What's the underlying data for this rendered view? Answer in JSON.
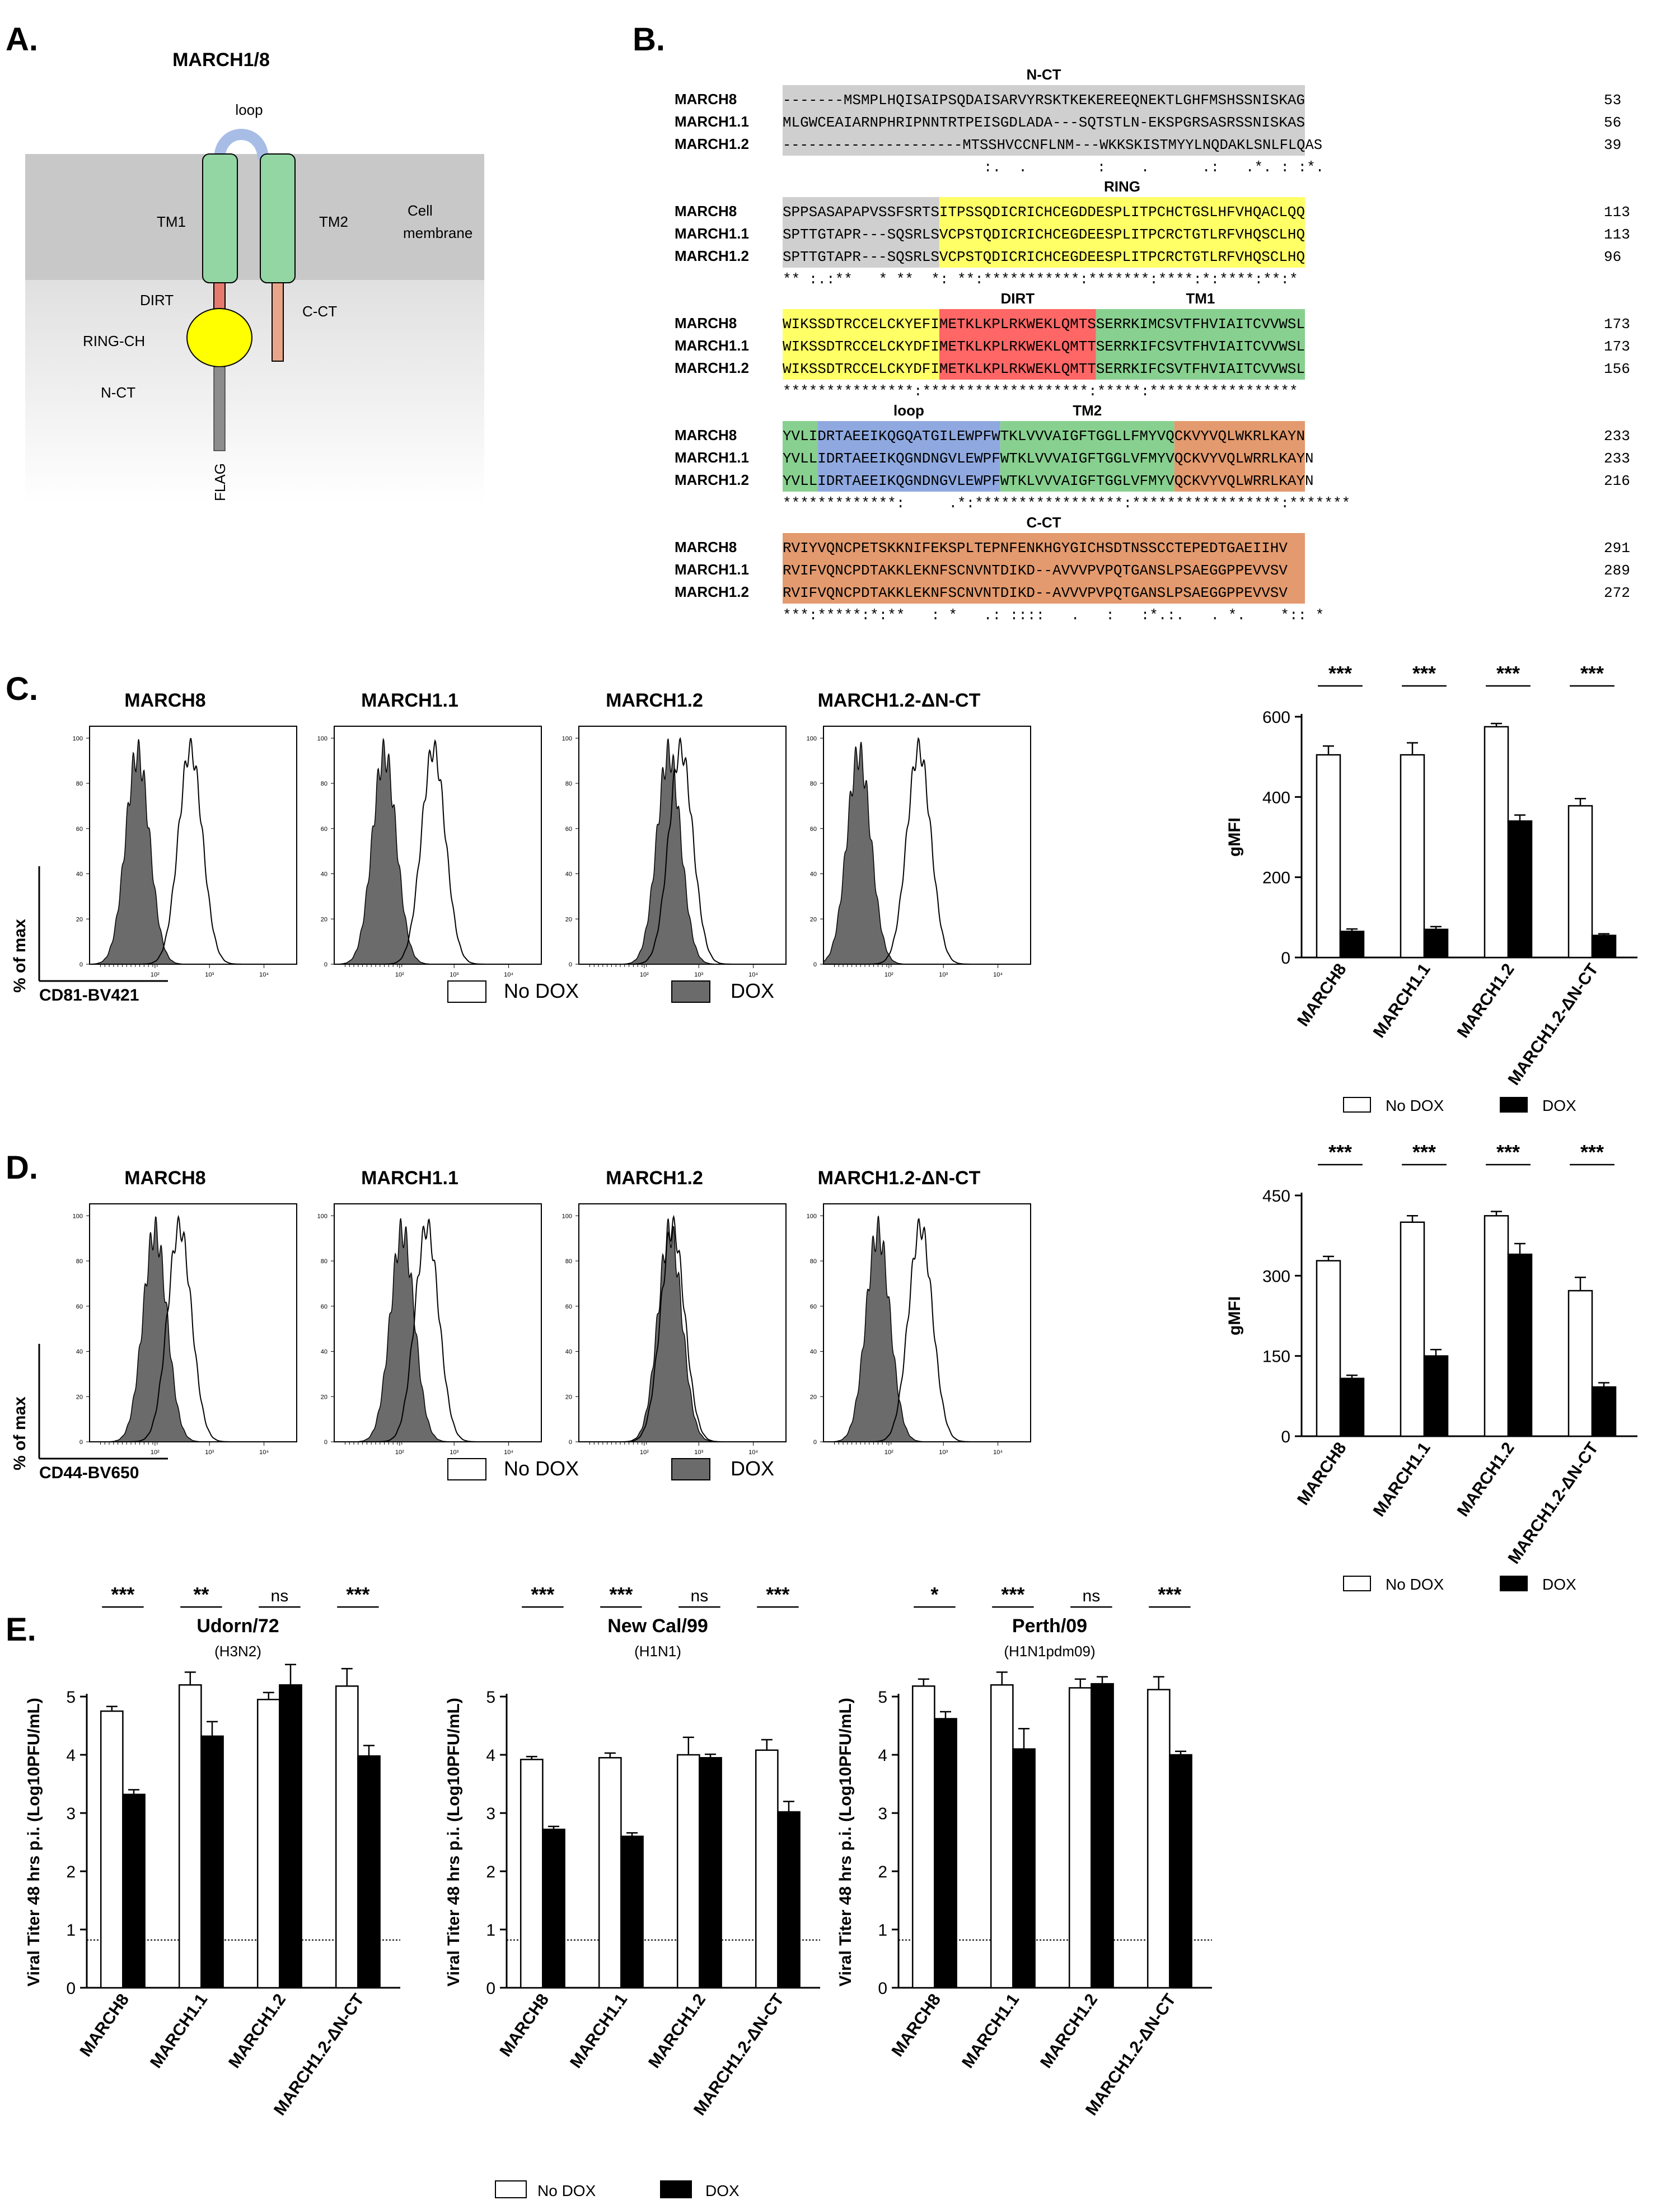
{
  "panelA": {
    "letter": "A.",
    "title": "MARCH1/8",
    "labels": {
      "loop": "loop",
      "tm1": "TM1",
      "tm2": "TM2",
      "membrane_line1": "Cell",
      "membrane_line2": "membrane",
      "dirt": "DIRT",
      "cct": "C-CT",
      "ringch": "RING-CH",
      "nct": "N-CT",
      "flag": "FLAG"
    },
    "colors": {
      "membrane": "#c8c8c8",
      "tm": "#93d6a4",
      "loop": "#a7bde6",
      "ring": "#ffff00",
      "dirt": "#e57a6e",
      "cct": "#e8a58a",
      "flag": "#8c8c8c"
    }
  },
  "panelB": {
    "letter": "B.",
    "colors": {
      "nct": "#cfcfcf",
      "ring": "#ffff66",
      "dirt": "#ff6666",
      "tm": "#88d08f",
      "loop": "#8fa9e0",
      "cct": "#e39a6e"
    },
    "blocks": [
      {
        "segments": [
          {
            "label": "N-CT",
            "color": "nct",
            "chars": 0,
            "len": 60
          }
        ],
        "rows": [
          {
            "name": "MARCH8",
            "seq": "-------MSMPLHQISAIPSQDAISARVYRSKTKEKEREEQNEKTLGHFMSHSSNISKAG",
            "num": "53"
          },
          {
            "name": "MARCH1.1",
            "seq": "MLGWCEAIARNPHRIPNNTRTPEISGDLADA---SQTSTLN-EKSPGRSASRSSNISKAS",
            "num": "56"
          },
          {
            "name": "MARCH1.2",
            "seq": "---------------------MTSSHVCCNFLNM---WKKSKISTMYYLNQDAKLSNLFLQAS",
            "num": "39"
          }
        ],
        "cons": "                       :.  .        :    .      .:   .*. : :*."
      },
      {
        "segments": [
          {
            "label": "",
            "color": "nct",
            "chars": 0,
            "len": 18
          },
          {
            "label": "RING",
            "color": "ring",
            "chars": 18,
            "len": 42
          }
        ],
        "rows": [
          {
            "name": "MARCH8",
            "seq": "SPPSASAPAPVSSFSRTSITPSSQDICRICHCEGDDESPLITPCHCTGSLHFVHQACLQQ",
            "num": "113"
          },
          {
            "name": "MARCH1.1",
            "seq": "SPTTGTAPR---SQSRLSVCPSTQDICRICHCEGDEESPLITPCRCTGTLRFVHQSCLHQ",
            "num": "113"
          },
          {
            "name": "MARCH1.2",
            "seq": "SPTTGTAPR---SQSRLSVCPSTQDICRICHCEGDEESPLITPCRCTGTLRFVHQSCLHQ",
            "num": "96"
          }
        ],
        "cons": "** :.:**   * **  *: **:***********:*******:****:*:****:**:*"
      },
      {
        "segments": [
          {
            "label": "",
            "color": "ring",
            "chars": 0,
            "len": 18
          },
          {
            "label": "DIRT",
            "color": "dirt",
            "chars": 18,
            "len": 18
          },
          {
            "label": "TM1",
            "color": "tm",
            "chars": 36,
            "len": 24
          }
        ],
        "rows": [
          {
            "name": "MARCH8",
            "seq": "WIKSSDTRCCELCKYEFIMETKLKPLRKWEKLQMTSSERRKIMCSVTFHVIAITCVVWSL",
            "num": "173"
          },
          {
            "name": "MARCH1.1",
            "seq": "WIKSSDTRCCELCKYDFIMETKLKPLRKWEKLQMTTSERRKIFCSVTFHVIAITCVVWSL",
            "num": "173"
          },
          {
            "name": "MARCH1.2",
            "seq": "WIKSSDTRCCELCKYDFIMETKLKPLRKWEKLQMTTSERRKIFCSVTFHVIAITCVVWSL",
            "num": "156"
          }
        ],
        "cons": "***************:*******************:*****:*****************"
      },
      {
        "segments": [
          {
            "label": "",
            "color": "tm",
            "chars": 0,
            "len": 4
          },
          {
            "label": "loop",
            "color": "loop",
            "chars": 4,
            "len": 21
          },
          {
            "label": "TM2",
            "color": "tm",
            "chars": 25,
            "len": 20
          },
          {
            "label": "",
            "color": "cct",
            "chars": 45,
            "len": 15
          }
        ],
        "rows": [
          {
            "name": "MARCH8",
            "seq": "YVLIDRTAEEIKQGQATGILEWPFWTKLVVVAIGFTGGLLFMYVQCKVYVQLWKRLKAYN",
            "num": "233"
          },
          {
            "name": "MARCH1.1",
            "seq": "YVLLIDRTAEEIKQGNDNGVLEWPFWTKLVVVAIGFTGGLVFMYVQCKVYVQLWRRLKAYN",
            "num": "233"
          },
          {
            "name": "MARCH1.2",
            "seq": "YVLLIDRTAEEIKQGNDNGVLEWPFWTKLVVVAIGFTGGLVFMYVQCKVYVQLWRRLKAYN",
            "num": "216"
          }
        ],
        "cons": "*************:     .*:*****************:*****************:*******"
      },
      {
        "segments": [
          {
            "label": "C-CT",
            "color": "cct",
            "chars": 0,
            "len": 60
          }
        ],
        "rows": [
          {
            "name": "MARCH8",
            "seq": "RVIYVQNCPETSKKNIFEKSPLTEPNFENKHGYGICHSDTNSSCCTEPEDTGAEIIHV",
            "num": "291"
          },
          {
            "name": "MARCH1.1",
            "seq": "RVIFVQNCPDTAKKLEKNFSCNVNTDIKD--AVVVPVPQTGANSLPSAEGGPPEVVSV",
            "num": "289"
          },
          {
            "name": "MARCH1.2",
            "seq": "RVIFVQNCPDTAKKLEKNFSCNVNTDIKD--AVVVPVPQTGANSLPSAEGGPPEVVSV",
            "num": "272"
          }
        ],
        "cons": "***:*****:*:**   : *   .: ::::   .   :   :*.:.   . *.    *:: *"
      }
    ]
  },
  "panelC": {
    "letter": "C.",
    "histograms": [
      {
        "title": "MARCH8",
        "nodox_peak": 2.65,
        "dox_peak": 1.68
      },
      {
        "title": "MARCH1.1",
        "nodox_peak": 2.62,
        "dox_peak": 1.72
      },
      {
        "title": "MARCH1.2",
        "nodox_peak": 2.67,
        "dox_peak": 2.45
      },
      {
        "title": "MARCH1.2-ΔN-CT",
        "nodox_peak": 2.55,
        "dox_peak": 1.45
      }
    ],
    "hist_y_ticks": [
      "100",
      "80",
      "60",
      "40",
      "20",
      "0"
    ],
    "hist_x_ticks": [
      "10²",
      "10³",
      "10⁴"
    ],
    "yaxis_label": "% of max",
    "xaxis_label": "CD81-BV421",
    "legend": {
      "nodox": "No DOX",
      "dox": "DOX"
    },
    "bar_legend": {
      "nodox": "No DOX",
      "dox": "DOX"
    }
  },
  "panelD": {
    "letter": "D.",
    "histograms": [
      {
        "title": "MARCH8",
        "nodox_peak": 2.45,
        "dox_peak": 2.0
      },
      {
        "title": "MARCH1.1",
        "nodox_peak": 2.5,
        "dox_peak": 2.05
      },
      {
        "title": "MARCH1.2",
        "nodox_peak": 2.52,
        "dox_peak": 2.47
      },
      {
        "title": "MARCH1.2-ΔN-CT",
        "nodox_peak": 2.58,
        "dox_peak": 1.8
      }
    ],
    "hist_y_ticks": [
      "100",
      "80",
      "60",
      "40",
      "20",
      "0"
    ],
    "hist_x_ticks": [
      "10²",
      "10³",
      "10⁴"
    ],
    "yaxis_label": "% of max",
    "xaxis_label": "CD44-BV650",
    "legend": {
      "nodox": "No DOX",
      "dox": "DOX"
    },
    "bar_legend": {
      "nodox": "No DOX",
      "dox": "DOX"
    }
  },
  "panelE": {
    "letter": "E.",
    "legend": {
      "nodox": "No DOX",
      "dox": "DOX"
    }
  },
  "chart_data": [
    {
      "type": "bar",
      "id": "C-gMFI",
      "categories": [
        "MARCH8",
        "MARCH1.1",
        "MARCH1.2",
        "MARCH1.2-ΔN-CT"
      ],
      "series": [
        {
          "name": "No DOX",
          "values": [
            505,
            505,
            575,
            378
          ],
          "err": [
            22,
            30,
            8,
            18
          ]
        },
        {
          "name": "DOX",
          "values": [
            65,
            70,
            340,
            55
          ],
          "err": [
            6,
            7,
            15,
            4
          ]
        }
      ],
      "ylabel": "gMFI",
      "ylim": [
        0,
        600
      ],
      "yticks": [
        "0",
        "200",
        "400",
        "600"
      ],
      "sig": [
        "***",
        "***",
        "***",
        "***"
      ]
    },
    {
      "type": "bar",
      "id": "D-gMFI",
      "categories": [
        "MARCH8",
        "MARCH1.1",
        "MARCH1.2",
        "MARCH1.2-ΔN-CT"
      ],
      "series": [
        {
          "name": "No DOX",
          "values": [
            328,
            400,
            412,
            272
          ],
          "err": [
            8,
            12,
            8,
            25
          ]
        },
        {
          "name": "DOX",
          "values": [
            108,
            150,
            340,
            92
          ],
          "err": [
            6,
            12,
            20,
            8
          ]
        }
      ],
      "ylabel": "gMFI",
      "ylim": [
        0,
        450
      ],
      "yticks": [
        "0",
        "150",
        "300",
        "450"
      ],
      "sig": [
        "***",
        "***",
        "***",
        "***"
      ]
    },
    {
      "type": "bar",
      "id": "E-Udorn",
      "title": "Udorn/72",
      "subtitle": "(H3N2)",
      "categories": [
        "MARCH8",
        "MARCH1.1",
        "MARCH1.2",
        "MARCH1.2-ΔN-CT"
      ],
      "series": [
        {
          "name": "No DOX",
          "values": [
            4.75,
            5.2,
            4.95,
            5.18
          ],
          "err": [
            0.08,
            0.22,
            0.12,
            0.3
          ]
        },
        {
          "name": "DOX",
          "values": [
            3.32,
            4.32,
            5.2,
            3.98
          ],
          "err": [
            0.08,
            0.25,
            0.35,
            0.18
          ]
        }
      ],
      "ylabel": "Viral Titer 48 hrs p.i. (Log10PFU/mL)",
      "ylim": [
        0,
        5
      ],
      "yticks": [
        "0",
        "1",
        "2",
        "3",
        "4",
        "5"
      ],
      "limit": 0.82,
      "sig": [
        "***",
        "**",
        "ns",
        "***"
      ]
    },
    {
      "type": "bar",
      "id": "E-NewCal",
      "title": "New Cal/99",
      "subtitle": "(H1N1)",
      "categories": [
        "MARCH8",
        "MARCH1.1",
        "MARCH1.2",
        "MARCH1.2-ΔN-CT"
      ],
      "series": [
        {
          "name": "No DOX",
          "values": [
            3.92,
            3.95,
            4.0,
            4.08
          ],
          "err": [
            0.05,
            0.08,
            0.3,
            0.18
          ]
        },
        {
          "name": "DOX",
          "values": [
            2.72,
            2.6,
            3.95,
            3.02
          ],
          "err": [
            0.05,
            0.06,
            0.06,
            0.18
          ]
        }
      ],
      "ylabel": "Viral Titer 48 hrs p.i. (Log10PFU/mL)",
      "ylim": [
        0,
        5
      ],
      "yticks": [
        "0",
        "1",
        "2",
        "3",
        "4",
        "5"
      ],
      "limit": 0.82,
      "sig": [
        "***",
        "***",
        "ns",
        "***"
      ]
    },
    {
      "type": "bar",
      "id": "E-Perth",
      "title": "Perth/09",
      "subtitle": "(H1N1pdm09)",
      "categories": [
        "MARCH8",
        "MARCH1.1",
        "MARCH1.2",
        "MARCH1.2-ΔN-CT"
      ],
      "series": [
        {
          "name": "No DOX",
          "values": [
            5.18,
            5.2,
            5.15,
            5.12
          ],
          "err": [
            0.12,
            0.22,
            0.15,
            0.22
          ]
        },
        {
          "name": "DOX",
          "values": [
            4.62,
            4.1,
            5.22,
            4.0
          ],
          "err": [
            0.12,
            0.35,
            0.12,
            0.06
          ]
        }
      ],
      "ylabel": "Viral Titer 48 hrs p.i. (Log10PFU/mL)",
      "ylim": [
        0,
        5
      ],
      "yticks": [
        "0",
        "1",
        "2",
        "3",
        "4",
        "5"
      ],
      "limit": 0.82,
      "sig": [
        "*",
        "***",
        "ns",
        "***"
      ]
    }
  ]
}
